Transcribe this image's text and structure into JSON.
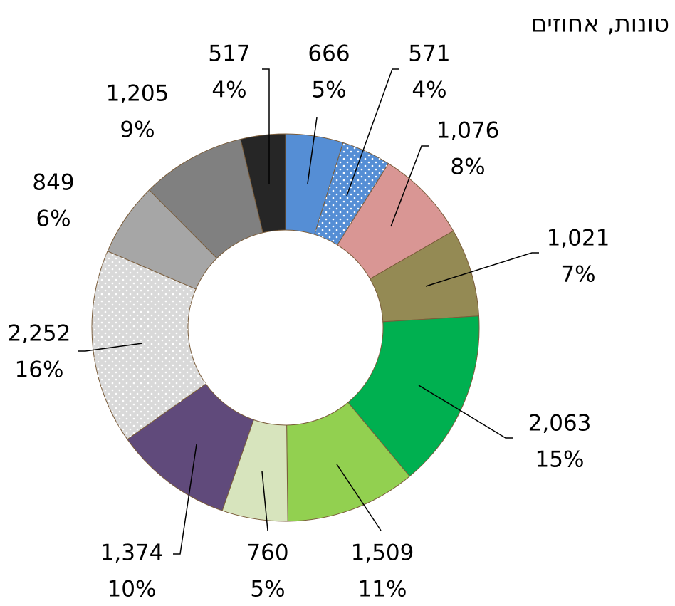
{
  "chart_data": {
    "type": "donut",
    "title": "טונות, אחוזים",
    "values": [
      666,
      571,
      1076,
      1021,
      2063,
      1509,
      760,
      1374,
      2252,
      849,
      1205,
      517
    ],
    "value_labels": [
      "666",
      "571",
      "1,076",
      "1,021",
      "2,063",
      "1,509",
      "760",
      "1,374",
      "2,252",
      "849",
      "1,205",
      "517"
    ],
    "percent_labels": [
      "5%",
      "4%",
      "8%",
      "7%",
      "15%",
      "11%",
      "5%",
      "10%",
      "16%",
      "6%",
      "9%",
      "4%"
    ],
    "colors": [
      "#558ed5",
      "#558ed5",
      "#d99694",
      "#948a54",
      "#00b050",
      "#92d050",
      "#d7e4bd",
      "#604a7b",
      "#d9d9d9",
      "#a6a6a6",
      "#808080",
      "#262626"
    ],
    "dotted": [
      false,
      true,
      false,
      false,
      false,
      false,
      false,
      false,
      true,
      false,
      false,
      false
    ]
  }
}
